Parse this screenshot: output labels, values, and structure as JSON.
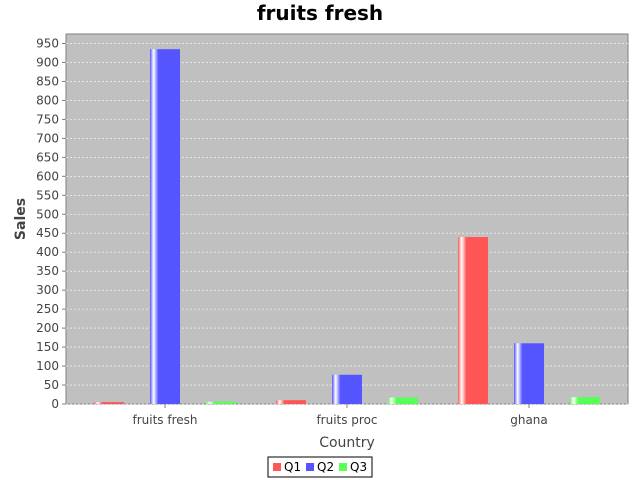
{
  "chart_data": {
    "type": "bar",
    "title": "fruits fresh",
    "xlabel": "Country",
    "ylabel": "Sales",
    "categories": [
      "fruits fresh",
      "fruits proc",
      "ghana"
    ],
    "series": [
      {
        "name": "Q1",
        "values": [
          5,
          10,
          440
        ],
        "color": "#ff5555"
      },
      {
        "name": "Q2",
        "values": [
          935,
          77,
          160
        ],
        "color": "#5555ff"
      },
      {
        "name": "Q3",
        "values": [
          6,
          17,
          18
        ],
        "color": "#55ff55"
      }
    ],
    "ylim": [
      0,
      975
    ],
    "yticks": [
      0,
      50,
      100,
      150,
      200,
      250,
      300,
      350,
      400,
      450,
      500,
      550,
      600,
      650,
      700,
      750,
      800,
      850,
      900,
      950
    ],
    "grid": true,
    "legend_position": "bottom",
    "plot_background": "#c0c0c0"
  }
}
